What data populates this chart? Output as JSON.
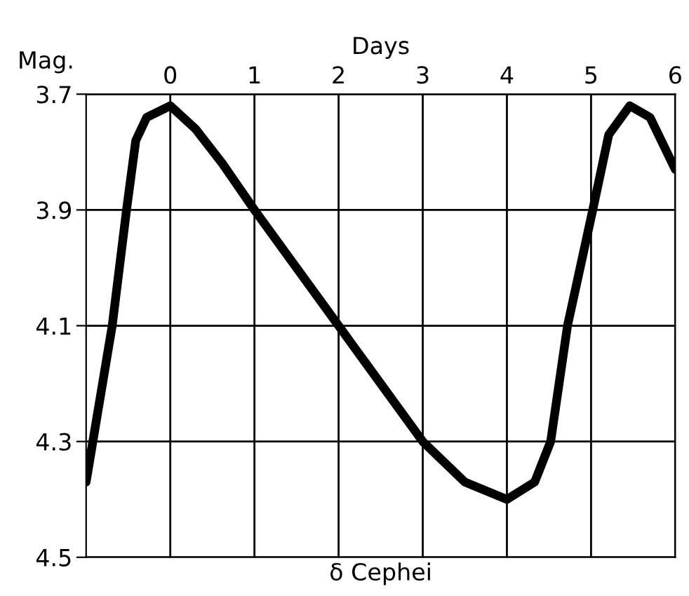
{
  "chart_data": {
    "type": "line",
    "title": "δ Cephei",
    "xlabel": "Days",
    "ylabel": "Mag.",
    "x": [
      -1.0,
      -0.92,
      -0.69,
      -0.52,
      -0.41,
      -0.28,
      0,
      0.3,
      0.62,
      1,
      2,
      3,
      3.5,
      4,
      4.33,
      4.52,
      4.72,
      5.02,
      5.21,
      5.46,
      5.7,
      6
    ],
    "series": [
      {
        "color": "#000000",
        "values": [
          4.37,
          4.3,
          4.1,
          3.9,
          3.78,
          3.74,
          3.72,
          3.76,
          3.82,
          3.9,
          4.1,
          4.3,
          4.37,
          4.4,
          4.37,
          4.3,
          4.1,
          3.9,
          3.77,
          3.72,
          3.74,
          3.83
        ]
      }
    ],
    "xlim": [
      -1.0,
      6
    ],
    "xticks": [
      0,
      1,
      2,
      3,
      4,
      5,
      6
    ],
    "ylim": [
      4.5,
      3.7
    ],
    "yticks": [
      3.7,
      3.9,
      4.1,
      4.3,
      4.5
    ],
    "grid": true,
    "legend": false,
    "marker": "none",
    "line_style": "solid"
  }
}
